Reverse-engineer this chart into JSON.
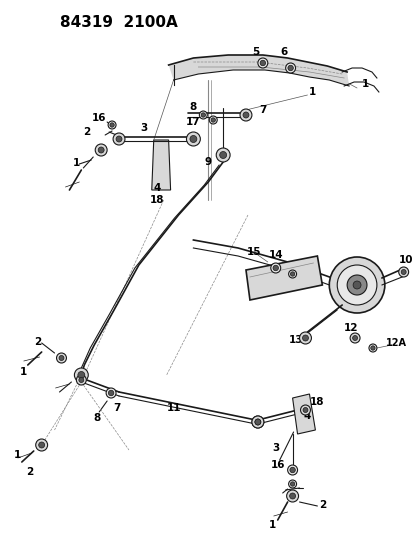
{
  "title": "84319  2100A",
  "bg_color": "#ffffff",
  "lc": "#1a1a1a",
  "gray_dark": "#555555",
  "gray_med": "#888888",
  "gray_light": "#bbbbbb",
  "gray_fill": "#d8d8d8",
  "gray_fill2": "#e8e8e8",
  "title_fontsize": 11,
  "label_fontsize": 7.5,
  "fig_width": 4.14,
  "fig_height": 5.33,
  "dpi": 100
}
